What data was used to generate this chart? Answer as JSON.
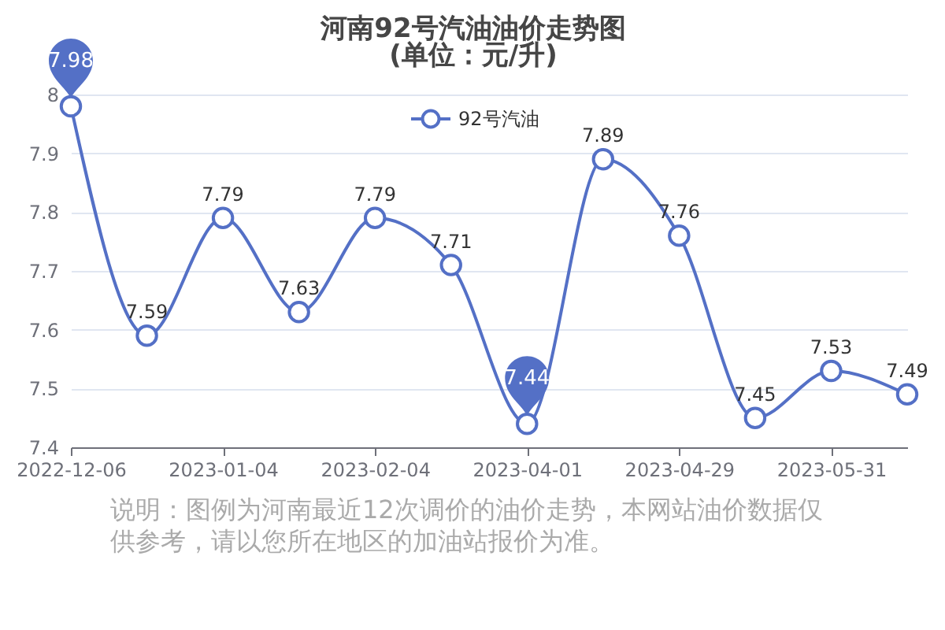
{
  "chart_data": {
    "type": "line",
    "title": "河南92号汽油油价走势图",
    "subtitle": "(单位：元/升)",
    "categories": [
      "2022-12-06",
      null,
      "2023-01-04",
      null,
      "2023-02-04",
      null,
      "2023-04-01",
      null,
      "2023-04-29",
      null,
      "2023-05-31",
      null
    ],
    "series": [
      {
        "name": "92号汽油",
        "color": "#5470c6",
        "values": [
          7.98,
          7.59,
          7.79,
          7.63,
          7.79,
          7.71,
          7.44,
          7.89,
          7.76,
          7.45,
          7.53,
          7.49
        ],
        "value_labels": [
          null,
          "7.59",
          "7.79",
          "7.63",
          "7.79",
          "7.71",
          null,
          "7.89",
          "7.76",
          "7.45",
          "7.53",
          "7.49"
        ]
      }
    ],
    "ylim": [
      7.4,
      8
    ],
    "yticks": [
      7.4,
      7.5,
      7.6,
      7.7,
      7.8,
      7.9,
      8
    ],
    "grid": "y",
    "legend": "top",
    "marker": "circle",
    "line_style": "solid",
    "annotations": [
      {
        "text": "7.98",
        "x": "2022-12-06",
        "y": 7.98
      },
      {
        "text": "7.44",
        "x": "2023-04-01",
        "y": 7.44
      },
      "说明：图例为河南最近12次调价的油价走势，本网站油价数据仅供参考，请以您所在地区的加油站报价为准。"
    ]
  }
}
